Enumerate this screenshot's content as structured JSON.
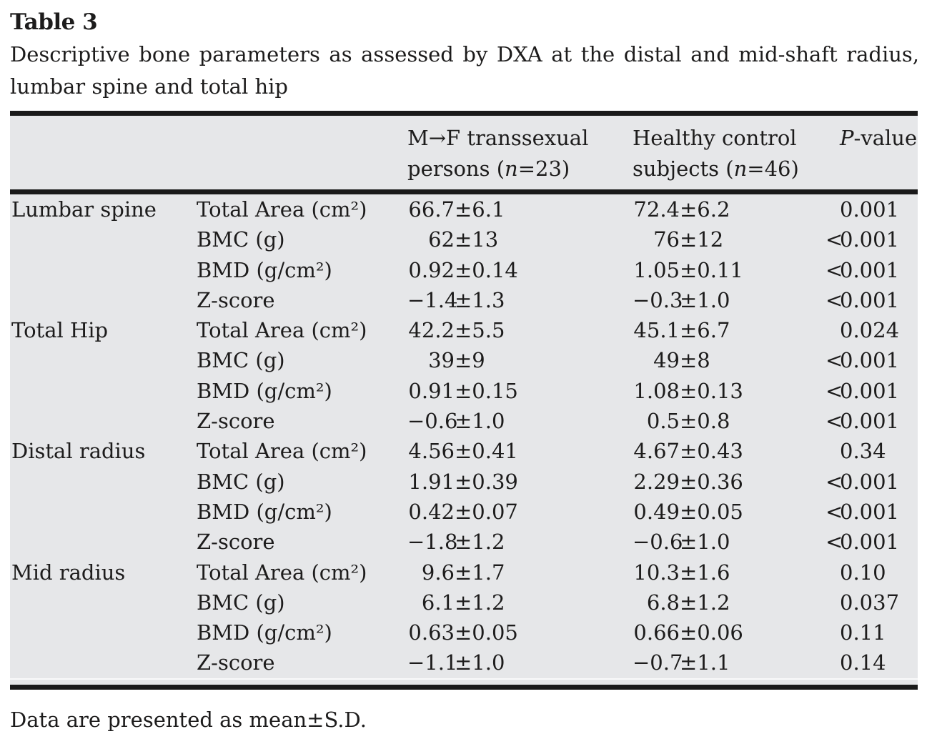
{
  "title": "Table 3",
  "caption_line1": "Descriptive bone parameters as assessed by DXA at the distal and mid-shaft radius,",
  "caption_line2": "lumbar spine and total hip",
  "header": {
    "group1": {
      "line1": "M→F transsexual",
      "line2_pre": "persons (",
      "n": "n",
      "line2_post": "=23)"
    },
    "group2": {
      "line1": "Healthy control",
      "line2_pre": "subjects (",
      "n": "n",
      "line2_post": "=46)"
    },
    "pvalue": {
      "italic": "P",
      "rest": "-value"
    }
  },
  "colors": {
    "table_background": "#e6e7e9",
    "rule": "#1a1a1a",
    "text": "#1d1c1c"
  },
  "rows": [
    {
      "region": "Lumbar spine",
      "param": "Total Area (cm²)",
      "g1m": "66.7",
      "g1s": "±6.1",
      "g2m": "72.4",
      "g2s": "±6.2",
      "plt": "",
      "p": "0.001"
    },
    {
      "region": "",
      "param": "BMC (g)",
      "g1m": "62",
      "g1s": "±13",
      "g2m": "76",
      "g2s": "±12",
      "plt": "<",
      "p": "0.001"
    },
    {
      "region": "",
      "param": "BMD (g/cm²)",
      "g1m": "0.92",
      "g1s": "±0.14",
      "g2m": "1.05",
      "g2s": "±0.11",
      "plt": "<",
      "p": "0.001"
    },
    {
      "region": "",
      "param": "Z-score",
      "g1m": "−1.4",
      "g1s": "±1.3",
      "g2m": "−0.3",
      "g2s": "±1.0",
      "plt": "<",
      "p": "0.001"
    },
    {
      "region": "Total Hip",
      "param": "Total Area (cm²)",
      "g1m": "42.2",
      "g1s": "±5.5",
      "g2m": "45.1",
      "g2s": "±6.7",
      "plt": "",
      "p": "0.024"
    },
    {
      "region": "",
      "param": "BMC (g)",
      "g1m": "39",
      "g1s": "±9",
      "g2m": "49",
      "g2s": "±8",
      "plt": "<",
      "p": "0.001"
    },
    {
      "region": "",
      "param": "BMD (g/cm²)",
      "g1m": "0.91",
      "g1s": "±0.15",
      "g2m": "1.08",
      "g2s": "±0.13",
      "plt": "<",
      "p": "0.001"
    },
    {
      "region": "",
      "param": "Z-score",
      "g1m": "−0.6",
      "g1s": "±1.0",
      "g2m": "0.5",
      "g2s": "±0.8",
      "plt": "<",
      "p": "0.001"
    },
    {
      "region": "Distal radius",
      "param": "Total Area (cm²)",
      "g1m": "4.56",
      "g1s": "±0.41",
      "g2m": "4.67",
      "g2s": "±0.43",
      "plt": "",
      "p": "0.34"
    },
    {
      "region": "",
      "param": "BMC (g)",
      "g1m": "1.91",
      "g1s": "±0.39",
      "g2m": "2.29",
      "g2s": "±0.36",
      "plt": "<",
      "p": "0.001"
    },
    {
      "region": "",
      "param": "BMD (g/cm²)",
      "g1m": "0.42",
      "g1s": "±0.07",
      "g2m": "0.49",
      "g2s": "±0.05",
      "plt": "<",
      "p": "0.001"
    },
    {
      "region": "",
      "param": "Z-score",
      "g1m": "−1.8",
      "g1s": "±1.2",
      "g2m": "−0.6",
      "g2s": "±1.0",
      "plt": "<",
      "p": "0.001"
    },
    {
      "region": "Mid radius",
      "param": "Total Area (cm²)",
      "g1m": "9.6",
      "g1s": "±1.7",
      "g2m": "10.3",
      "g2s": "±1.6",
      "plt": "",
      "p": "0.10"
    },
    {
      "region": "",
      "param": "BMC (g)",
      "g1m": "6.1",
      "g1s": "±1.2",
      "g2m": "6.8",
      "g2s": "±1.2",
      "plt": "",
      "p": "0.037"
    },
    {
      "region": "",
      "param": "BMD (g/cm²)",
      "g1m": "0.63",
      "g1s": "±0.05",
      "g2m": "0.66",
      "g2s": "±0.06",
      "plt": "",
      "p": "0.11"
    },
    {
      "region": "",
      "param": "Z-score",
      "g1m": "−1.1",
      "g1s": "±1.0",
      "g2m": "−0.7",
      "g2s": "±1.1",
      "plt": "",
      "p": "0.14"
    }
  ],
  "footnote": "Data are presented as mean±S.D."
}
